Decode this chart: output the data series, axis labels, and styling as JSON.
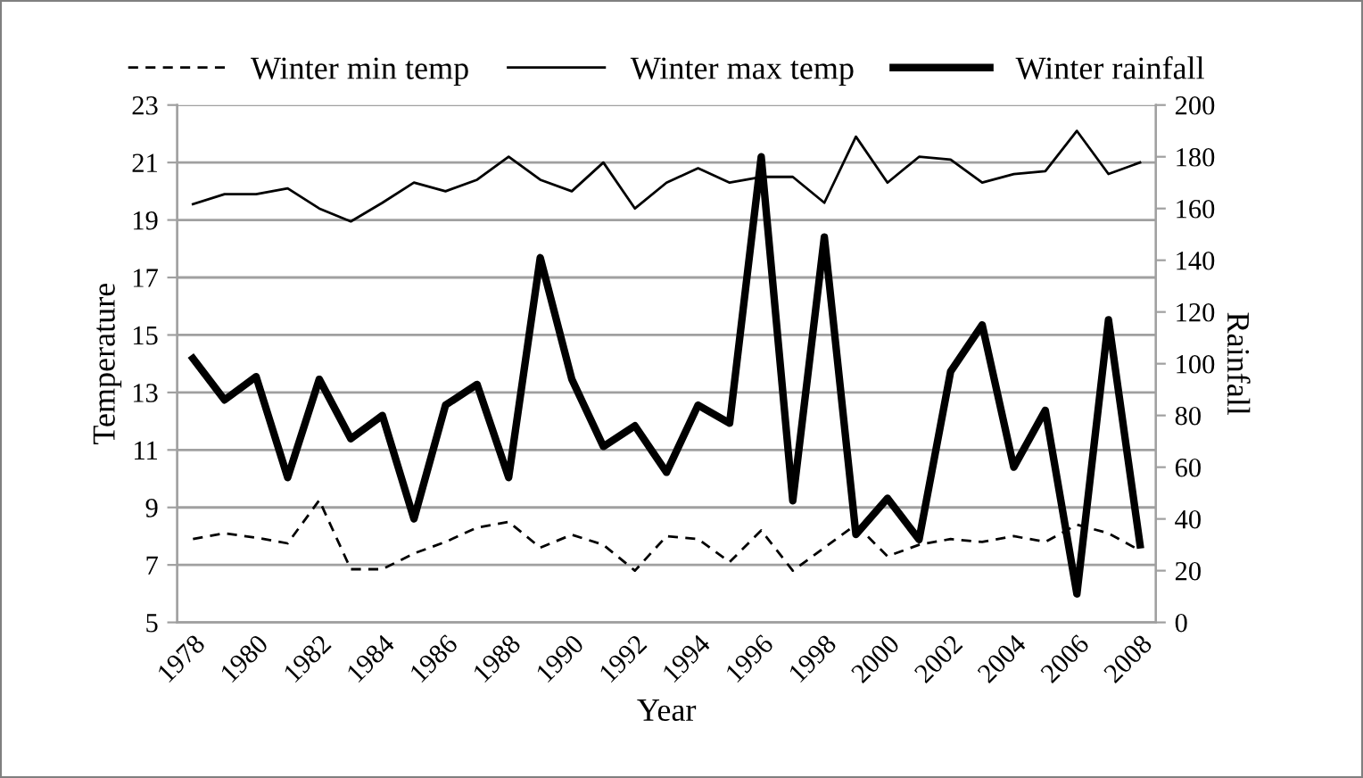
{
  "chart_data": {
    "type": "line",
    "xlabel": "Year",
    "ylabel": "Temperature",
    "y2label": "Rainfall",
    "categories": [
      "1978",
      null,
      "1980",
      null,
      "1982",
      null,
      "1984",
      null,
      "1986",
      null,
      "1988",
      null,
      "1990",
      null,
      "1992",
      null,
      "1994",
      null,
      "1996",
      null,
      "1998",
      null,
      "2000",
      null,
      "2002",
      null,
      "2004",
      null,
      "2006",
      null,
      "2008"
    ],
    "series": [
      {
        "name": "Winter min temp",
        "color": "#000000",
        "line_style": "dashed",
        "values": [
          7.9,
          8.1,
          7.95,
          7.75,
          9.25,
          6.85,
          6.85,
          7.4,
          7.8,
          8.3,
          8.5,
          7.6,
          8.05,
          7.7,
          6.8,
          8.0,
          7.9,
          7.1,
          8.2,
          6.8,
          7.6,
          8.4,
          7.3,
          7.7,
          7.9,
          7.8,
          8.0,
          7.8,
          8.4,
          8.1,
          7.5
        ]
      },
      {
        "name": "Winter max temp",
        "color": "#000000",
        "line_style": "solid",
        "values": [
          19.55,
          19.9,
          19.9,
          20.1,
          19.4,
          18.95,
          19.6,
          20.3,
          20.0,
          20.4,
          21.2,
          20.4,
          20.0,
          21.0,
          19.4,
          20.3,
          20.8,
          20.3,
          20.5,
          20.5,
          19.6,
          21.9,
          20.3,
          21.2,
          21.1,
          20.3,
          20.6,
          20.7,
          22.1,
          20.6,
          21.0
        ]
      },
      {
        "name": "Winter rainfall",
        "color": "#000000",
        "line_style": "solid",
        "axis": "y2",
        "values": [
          102,
          86,
          95,
          56,
          94,
          71,
          80,
          40,
          84,
          92,
          56,
          141,
          94,
          68,
          76,
          58,
          84,
          77,
          180,
          47,
          149,
          34,
          48,
          32,
          97,
          115,
          60,
          82,
          11,
          117,
          30
        ]
      }
    ],
    "ylim": [
      5,
      23
    ],
    "yticks": [
      5,
      7,
      9,
      11,
      13,
      15,
      17,
      19,
      21,
      23
    ],
    "y2lim": [
      0,
      200
    ],
    "y2ticks": [
      0,
      20,
      40,
      60,
      80,
      100,
      120,
      140,
      160,
      180,
      200
    ],
    "grid": "y",
    "legend": "top",
    "marker": "none"
  }
}
